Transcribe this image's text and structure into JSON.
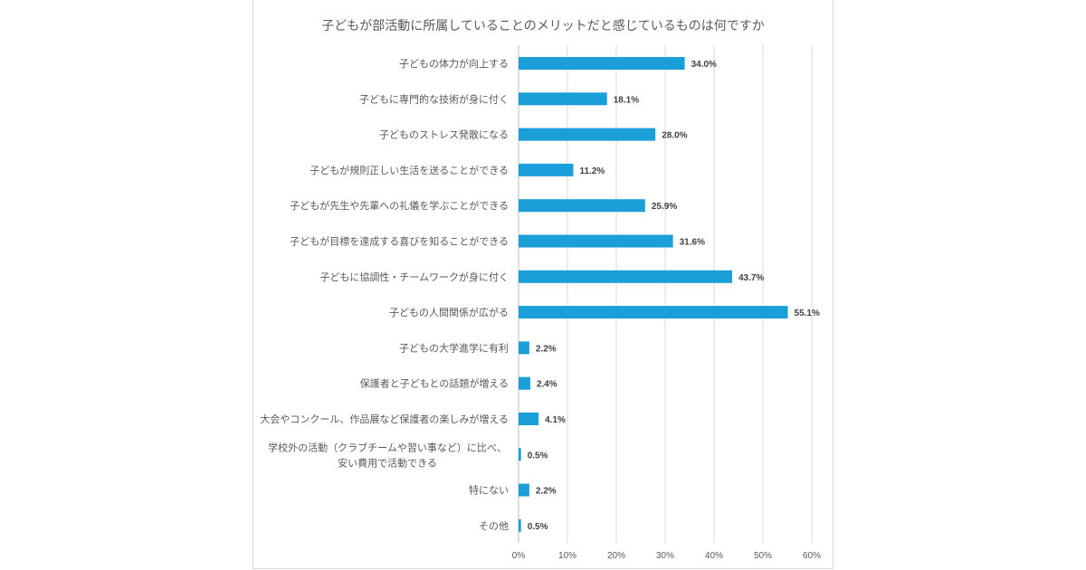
{
  "chart_data": {
    "type": "bar",
    "orientation": "horizontal",
    "title": "子どもが部活動に所属していることのメリットだと感じているものは何ですか",
    "categories": [
      "子どもの体力が向上する",
      "子どもに専門的な技術が身に付く",
      "子どものストレス発散になる",
      "子どもが規則正しい生活を送ることができる",
      "子どもが先生や先輩への礼儀を学ぶことができる",
      "子どもが目標を達成する喜びを知ることができる",
      "子どもに協調性・チームワークが身に付く",
      "子どもの人間関係が広がる",
      "子どもの大学進学に有利",
      "保護者と子どもとの話題が増える",
      "大会やコンクール、作品展など保護者の楽しみが増える",
      "学校外の活動（クラブチームや習い事など）に比べ、\n安い費用で活動できる",
      "特にない",
      "その他"
    ],
    "values": [
      34.0,
      18.1,
      28.0,
      11.2,
      25.9,
      31.6,
      43.7,
      55.1,
      2.2,
      2.4,
      4.1,
      0.5,
      2.2,
      0.5
    ],
    "value_labels": [
      "34.0%",
      "18.1%",
      "28.0%",
      "11.2%",
      "25.9%",
      "31.6%",
      "43.7%",
      "55.1%",
      "2.2%",
      "2.4%",
      "4.1%",
      "0.5%",
      "2.2%",
      "0.5%"
    ],
    "xlim": [
      0,
      60
    ],
    "x_ticks": [
      0,
      10,
      20,
      30,
      40,
      50,
      60
    ],
    "x_tick_labels": [
      "0%",
      "10%",
      "20%",
      "30%",
      "40%",
      "50%",
      "60%"
    ],
    "xlabel": "",
    "ylabel": "",
    "grid": true,
    "legend": "none",
    "bar_color": "#1a9fd9"
  }
}
